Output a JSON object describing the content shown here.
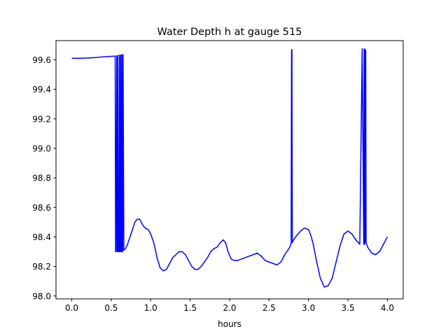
{
  "chart_data": {
    "type": "line",
    "title": "Water Depth h at gauge 515",
    "xlabel": "hours",
    "ylabel": "",
    "xlim": [
      -0.2,
      4.2
    ],
    "ylim": [
      97.98,
      99.73
    ],
    "xticks": [
      0.0,
      0.5,
      1.0,
      1.5,
      2.0,
      2.5,
      3.0,
      3.5,
      4.0
    ],
    "xtick_labels": [
      "0.0",
      "0.5",
      "1.0",
      "1.5",
      "2.0",
      "2.5",
      "3.0",
      "3.5",
      "4.0"
    ],
    "yticks": [
      98.0,
      98.2,
      98.4,
      98.6,
      98.8,
      99.0,
      99.2,
      99.4,
      99.6
    ],
    "ytick_labels": [
      "98.0",
      "98.2",
      "98.4",
      "98.6",
      "98.8",
      "99.0",
      "99.2",
      "99.4",
      "99.6"
    ],
    "grid": false,
    "series": [
      {
        "color": "#0000ff",
        "x": [
          0.0,
          0.1,
          0.2,
          0.3,
          0.4,
          0.55,
          0.555,
          0.56,
          0.57,
          0.575,
          0.58,
          0.585,
          0.59,
          0.6,
          0.605,
          0.61,
          0.615,
          0.62,
          0.625,
          0.63,
          0.635,
          0.64,
          0.645,
          0.65,
          0.66,
          0.68,
          0.7,
          0.75,
          0.8,
          0.83,
          0.86,
          0.9,
          0.93,
          0.97,
          1.0,
          1.04,
          1.08,
          1.12,
          1.16,
          1.2,
          1.24,
          1.28,
          1.32,
          1.36,
          1.4,
          1.44,
          1.48,
          1.52,
          1.56,
          1.6,
          1.64,
          1.68,
          1.72,
          1.76,
          1.8,
          1.84,
          1.88,
          1.92,
          1.95,
          1.98,
          2.02,
          2.06,
          2.1,
          2.15,
          2.2,
          2.25,
          2.3,
          2.35,
          2.4,
          2.45,
          2.5,
          2.55,
          2.6,
          2.65,
          2.7,
          2.75,
          2.77,
          2.78,
          2.785,
          2.79,
          2.795,
          2.8,
          2.85,
          2.9,
          2.95,
          3.0,
          3.03,
          3.06,
          3.1,
          3.15,
          3.2,
          3.25,
          3.3,
          3.35,
          3.4,
          3.45,
          3.5,
          3.55,
          3.6,
          3.65,
          3.68,
          3.7,
          3.705,
          3.71,
          3.715,
          3.72,
          3.725,
          3.73,
          3.75,
          3.8,
          3.85,
          3.9,
          3.95,
          4.0
        ],
        "y": [
          99.61,
          99.61,
          99.612,
          99.615,
          99.62,
          99.625,
          98.3,
          98.3,
          99.628,
          98.3,
          98.3,
          99.63,
          98.3,
          98.3,
          99.632,
          98.3,
          98.3,
          99.633,
          98.3,
          98.3,
          99.634,
          98.3,
          98.3,
          99.635,
          98.31,
          98.32,
          98.34,
          98.42,
          98.5,
          98.52,
          98.52,
          98.48,
          98.46,
          98.45,
          98.42,
          98.36,
          98.26,
          98.19,
          98.17,
          98.18,
          98.22,
          98.26,
          98.28,
          98.3,
          98.3,
          98.28,
          98.24,
          98.2,
          98.18,
          98.18,
          98.2,
          98.23,
          98.26,
          98.3,
          98.32,
          98.33,
          98.36,
          98.38,
          98.36,
          98.3,
          98.25,
          98.24,
          98.24,
          98.25,
          98.26,
          98.27,
          98.28,
          98.29,
          98.27,
          98.24,
          98.23,
          98.22,
          98.21,
          98.23,
          98.28,
          98.32,
          98.34,
          98.36,
          99.66,
          99.67,
          98.36,
          98.37,
          98.41,
          98.44,
          98.46,
          98.45,
          98.41,
          98.35,
          98.24,
          98.12,
          98.06,
          98.07,
          98.12,
          98.23,
          98.34,
          98.42,
          98.44,
          98.42,
          98.38,
          98.35,
          99.675,
          98.35,
          99.675,
          98.35,
          99.67,
          98.36,
          99.665,
          98.36,
          98.33,
          98.29,
          98.28,
          98.3,
          98.35,
          98.4
        ]
      }
    ]
  }
}
